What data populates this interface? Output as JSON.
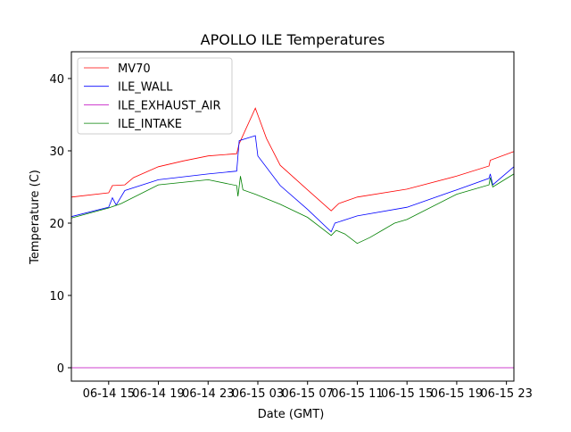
{
  "chart_data": {
    "type": "line",
    "title": "APOLLO ILE Temperatures",
    "xlabel": "Date (GMT)",
    "ylabel": "Temperature (C)",
    "x_units": "hours since 06-14 00:00",
    "xlim": [
      12,
      47.6
    ],
    "ylim": [
      -1.85,
      43.7
    ],
    "xticks": [
      15,
      19,
      23,
      27,
      31,
      35,
      39,
      43,
      47
    ],
    "xtick_labels": [
      "06-14 15",
      "06-14 19",
      "06-14 23",
      "06-15 03",
      "06-15 07",
      "06-15 11",
      "06-15 15",
      "06-15 19",
      "06-15 23"
    ],
    "yticks": [
      0,
      10,
      20,
      30,
      40
    ],
    "ytick_labels": [
      "0",
      "10",
      "20",
      "30",
      "40"
    ],
    "grid": false,
    "legend_placement": "top-left",
    "series": [
      {
        "name": "MV70",
        "color": "#ff0000",
        "x": [
          12,
          15,
          15.3,
          16.3,
          17,
          19,
          21,
          23,
          25.3,
          25.5,
          26.8,
          27.7,
          28.8,
          31,
          32.9,
          33.5,
          35,
          39,
          43,
          45.6,
          45.7,
          47.6
        ],
        "y": [
          23.6,
          24.2,
          25.2,
          25.3,
          26.3,
          27.8,
          28.6,
          29.3,
          29.6,
          31.0,
          35.9,
          31.7,
          28.0,
          24.6,
          21.7,
          22.7,
          23.6,
          24.7,
          26.5,
          27.9,
          28.7,
          29.9
        ]
      },
      {
        "name": "ILE_WALL",
        "color": "#0000ff",
        "x": [
          12,
          15,
          15.3,
          15.6,
          16.3,
          19,
          23,
          25.3,
          25.5,
          26.8,
          27,
          28.8,
          31,
          32.9,
          33.2,
          35,
          39,
          43,
          45.6,
          45.7,
          45.9,
          47.6
        ],
        "y": [
          20.9,
          22.2,
          23.5,
          22.5,
          24.5,
          26.0,
          26.8,
          27.2,
          31.4,
          32.1,
          29.3,
          25.2,
          21.9,
          18.8,
          20.0,
          21.0,
          22.2,
          24.6,
          26.2,
          26.8,
          25.3,
          27.8
        ]
      },
      {
        "name": "ILE_EXHAUST_AIR",
        "color": "#bf00bf",
        "x": [
          12,
          47.6
        ],
        "y": [
          0,
          0
        ]
      },
      {
        "name": "ILE_INTAKE",
        "color": "#008000",
        "x": [
          12,
          15,
          16,
          19,
          23,
          25.3,
          25.4,
          25.6,
          25.8,
          26.8,
          28.8,
          31,
          32.9,
          33.3,
          34,
          35,
          36,
          37,
          38,
          39,
          43,
          45.6,
          45.7,
          45.9,
          47.6
        ],
        "y": [
          20.7,
          22.1,
          22.7,
          25.3,
          26.0,
          25.2,
          23.7,
          26.5,
          24.6,
          24.0,
          22.6,
          20.8,
          18.3,
          19.0,
          18.5,
          17.2,
          18.0,
          19.0,
          20.0,
          20.5,
          24.0,
          25.3,
          26.3,
          25.0,
          26.8
        ]
      }
    ]
  }
}
